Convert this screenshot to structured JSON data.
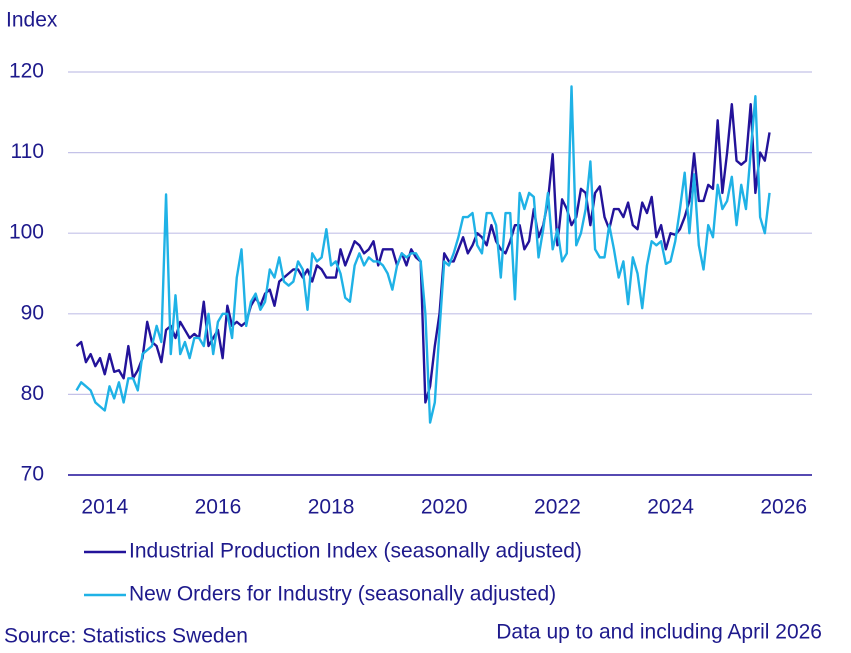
{
  "chart_data": {
    "type": "line",
    "y_label": "Index",
    "source": "Source: Statistics Sweden",
    "note": "Data up to and including April 2026",
    "ylim": [
      70,
      120
    ],
    "yticks": [
      70,
      80,
      90,
      100,
      110,
      120
    ],
    "grid": true,
    "xlim": [
      2013.85,
      2027.0
    ],
    "xticks": [
      {
        "value": 2014.5,
        "label": "2014"
      },
      {
        "value": 2016.5,
        "label": "2016"
      },
      {
        "value": 2018.5,
        "label": "2018"
      },
      {
        "value": 2020.5,
        "label": "2020"
      },
      {
        "value": 2022.5,
        "label": "2022"
      },
      {
        "value": 2024.5,
        "label": "2024"
      },
      {
        "value": 2026.5,
        "label": "2026"
      }
    ],
    "x_start": 2014.0,
    "x_step": 0.08333,
    "series": [
      {
        "name": "Industrial Production Index (seasonally adjusted)",
        "color": "#23139a",
        "values": [
          86,
          86.5,
          84,
          85,
          83.5,
          84.5,
          82.5,
          85,
          82.8,
          83,
          82,
          86,
          82,
          83,
          84.5,
          89,
          86.5,
          86,
          84,
          88,
          88.5,
          87,
          89,
          88,
          87,
          87.5,
          87,
          91.5,
          86,
          87,
          88,
          84.5,
          91,
          88.5,
          89,
          88.5,
          89,
          91,
          92,
          91,
          92.5,
          93,
          91,
          94,
          94.5,
          95,
          95.5,
          95.5,
          94.5,
          95.5,
          94,
          96,
          95.5,
          94.5,
          94.5,
          94.5,
          98,
          96,
          97.5,
          99,
          98.5,
          97.5,
          98,
          99,
          96,
          98,
          98,
          98,
          96,
          97.5,
          96,
          98,
          97,
          96.5,
          79,
          81,
          86,
          90,
          97.5,
          96.5,
          96.5,
          98,
          99.5,
          97.5,
          98.5,
          100,
          99.5,
          98.5,
          101,
          99,
          98,
          97.5,
          99,
          101,
          101,
          98,
          99,
          103,
          99.5,
          101,
          104,
          109.8,
          98.5,
          104.2,
          103,
          101,
          102,
          105.5,
          105,
          101,
          105,
          105.8,
          102,
          100.5,
          103,
          103,
          102,
          103.8,
          101,
          100.5,
          103.8,
          102.5,
          104.5,
          99.5,
          101,
          98,
          100,
          99.8,
          100.5,
          102,
          104,
          109.9,
          104,
          104,
          106,
          105.5,
          114,
          105,
          110,
          116,
          109,
          108.5,
          109,
          116,
          105,
          110,
          109,
          112.5
        ]
      },
      {
        "name": "New Orders for Industry (seasonally adjusted)",
        "color": "#1fb2e6",
        "values": [
          80.5,
          81.5,
          81,
          80.5,
          79,
          78.5,
          78,
          81,
          79.5,
          81.5,
          79,
          82,
          82,
          80.5,
          85,
          85.5,
          86,
          88.5,
          86.5,
          104.8,
          85,
          92.3,
          85,
          86.5,
          84.5,
          87,
          87,
          86,
          90,
          85,
          89,
          90,
          90,
          87,
          94.5,
          98,
          88.5,
          91.5,
          92.5,
          90.5,
          91.5,
          95.5,
          94.5,
          97,
          94,
          93.5,
          94,
          96.5,
          95.5,
          90.5,
          97.5,
          96.5,
          97,
          100.5,
          96,
          96.5,
          95,
          92,
          91.5,
          96,
          97.5,
          96,
          97,
          96.5,
          96.5,
          96,
          95,
          93,
          96,
          97.5,
          97,
          97.5,
          97.5,
          96.5,
          90,
          76.5,
          79,
          88,
          96.5,
          96,
          97.5,
          99.5,
          102,
          102,
          102.5,
          98.5,
          97.5,
          102.5,
          102.5,
          101,
          94.5,
          102.5,
          102.5,
          91.8,
          105,
          103,
          105,
          104.5,
          97,
          100.5,
          105,
          98,
          100.5,
          96.5,
          97.5,
          118.2,
          98.5,
          100,
          103,
          108.9,
          98,
          97,
          97,
          101,
          98,
          94.5,
          96.5,
          91.2,
          97,
          95,
          90.7,
          96,
          99,
          98.5,
          99,
          96.2,
          96.5,
          99,
          103,
          107.5,
          100,
          107.3,
          98.5,
          95.5,
          101,
          99.5,
          106,
          103,
          104,
          107,
          101,
          106,
          103,
          110,
          117,
          102,
          100,
          105
        ]
      }
    ]
  }
}
